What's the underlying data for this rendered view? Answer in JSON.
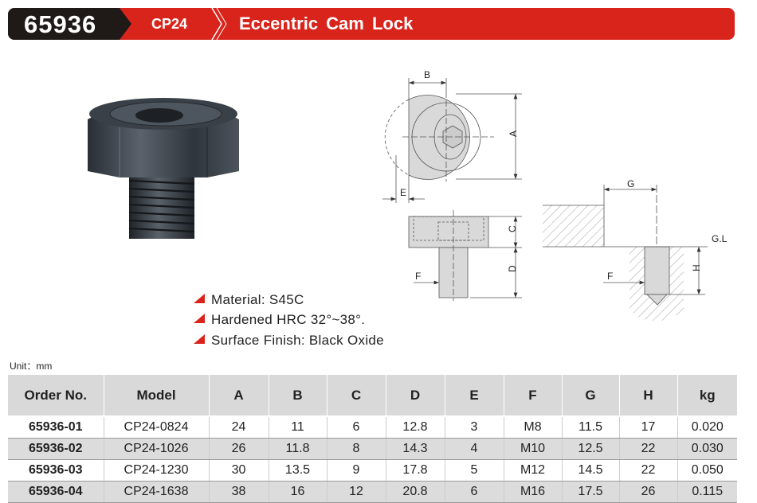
{
  "header": {
    "code": "65936",
    "series": "CP24",
    "title": "Eccentric Cam Lock"
  },
  "colors": {
    "brand_red": "#d9241c",
    "dark": "#1f1a17",
    "table_header": "#d9d9d9"
  },
  "diagram_labels": {
    "A": "A",
    "B": "B",
    "C": "C",
    "D": "D",
    "E": "E",
    "F": "F",
    "G": "G",
    "H": "H",
    "GL": "G.L"
  },
  "features": [
    "Material: S45C",
    "Hardened HRC 32°~38°.",
    "Surface Finish: Black Oxide"
  ],
  "unit": "Unit：mm",
  "table": {
    "headers": [
      "Order No.",
      "Model",
      "A",
      "B",
      "C",
      "D",
      "E",
      "F",
      "G",
      "H",
      "kg"
    ],
    "rows": [
      [
        "65936-01",
        "CP24-0824",
        "24",
        "11",
        "6",
        "12.8",
        "3",
        "M8",
        "11.5",
        "17",
        "0.020"
      ],
      [
        "65936-02",
        "CP24-1026",
        "26",
        "11.8",
        "8",
        "14.3",
        "4",
        "M10",
        "12.5",
        "22",
        "0.030"
      ],
      [
        "65936-03",
        "CP24-1230",
        "30",
        "13.5",
        "9",
        "17.8",
        "5",
        "M12",
        "14.5",
        "22",
        "0.050"
      ],
      [
        "65936-04",
        "CP24-1638",
        "38",
        "16",
        "12",
        "20.8",
        "6",
        "M16",
        "17.5",
        "26",
        "0.115"
      ]
    ]
  }
}
